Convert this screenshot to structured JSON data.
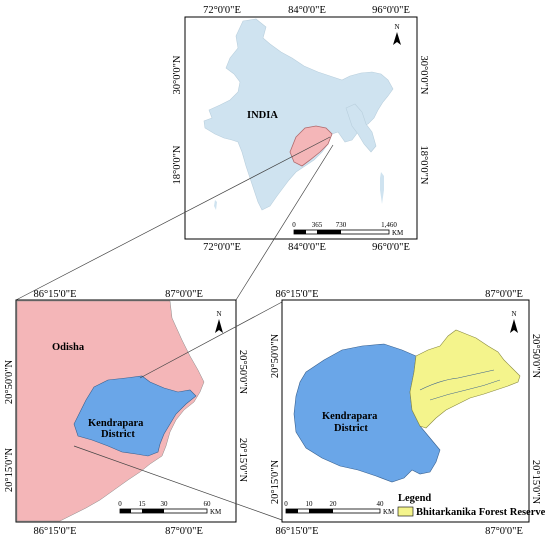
{
  "colors": {
    "india_fill": "#cfe3f0",
    "odisha_fill": "#f4b6b8",
    "district_fill": "#6aa6e8",
    "forest_fill": "#f4f48c",
    "frame": "#000000"
  },
  "india_map": {
    "top_coords": [
      "72°0'0\"E",
      "84°0'0\"E",
      "96°0'0\"E"
    ],
    "bottom_coords": [
      "72°0'0\"E",
      "84°0'0\"E",
      "96°0'0\"E"
    ],
    "left_coords": [
      "30°0'0\"N",
      "18°0'0\"N"
    ],
    "right_coords": [
      "30°0'0\"N",
      "18°0'0\"N"
    ],
    "country_label": "INDIA",
    "north_label": "N",
    "scale_ticks": [
      "0",
      "365",
      "730",
      "1,460"
    ],
    "scale_unit": "KM"
  },
  "odisha_map": {
    "top_coords": [
      "86°15'0\"E",
      "87°0'0\"E"
    ],
    "bottom_coords": [
      "86°15'0\"E",
      "87°0'0\"E"
    ],
    "left_coords": [
      "20°50'0\"N",
      "20°15'0\"N"
    ],
    "right_coords": [
      "20°50'0\"N",
      "20°15'0\"N"
    ],
    "state_label": "Odisha",
    "district_label_1": "Kendrapara",
    "district_label_2": "District",
    "north_label": "N",
    "scale_ticks": [
      "0",
      "15",
      "30",
      "60"
    ],
    "scale_unit": "KM"
  },
  "district_map": {
    "top_coords": [
      "86°15'0\"E",
      "87°0'0\"E"
    ],
    "bottom_coords": [
      "86°15'0\"E",
      "87°0'0\"E"
    ],
    "left_coords": [
      "20°50'0\"N",
      "20°15'0\"N"
    ],
    "right_coords": [
      "20°50'0\"N",
      "20°15'0\"N"
    ],
    "district_label_1": "Kendrapara",
    "district_label_2": "District",
    "north_label": "N",
    "scale_ticks": [
      "0",
      "10",
      "20",
      "40"
    ],
    "scale_unit": "KM",
    "legend_title": "Legend",
    "legend_item": "Bhitarkanika Forest Reserve"
  }
}
